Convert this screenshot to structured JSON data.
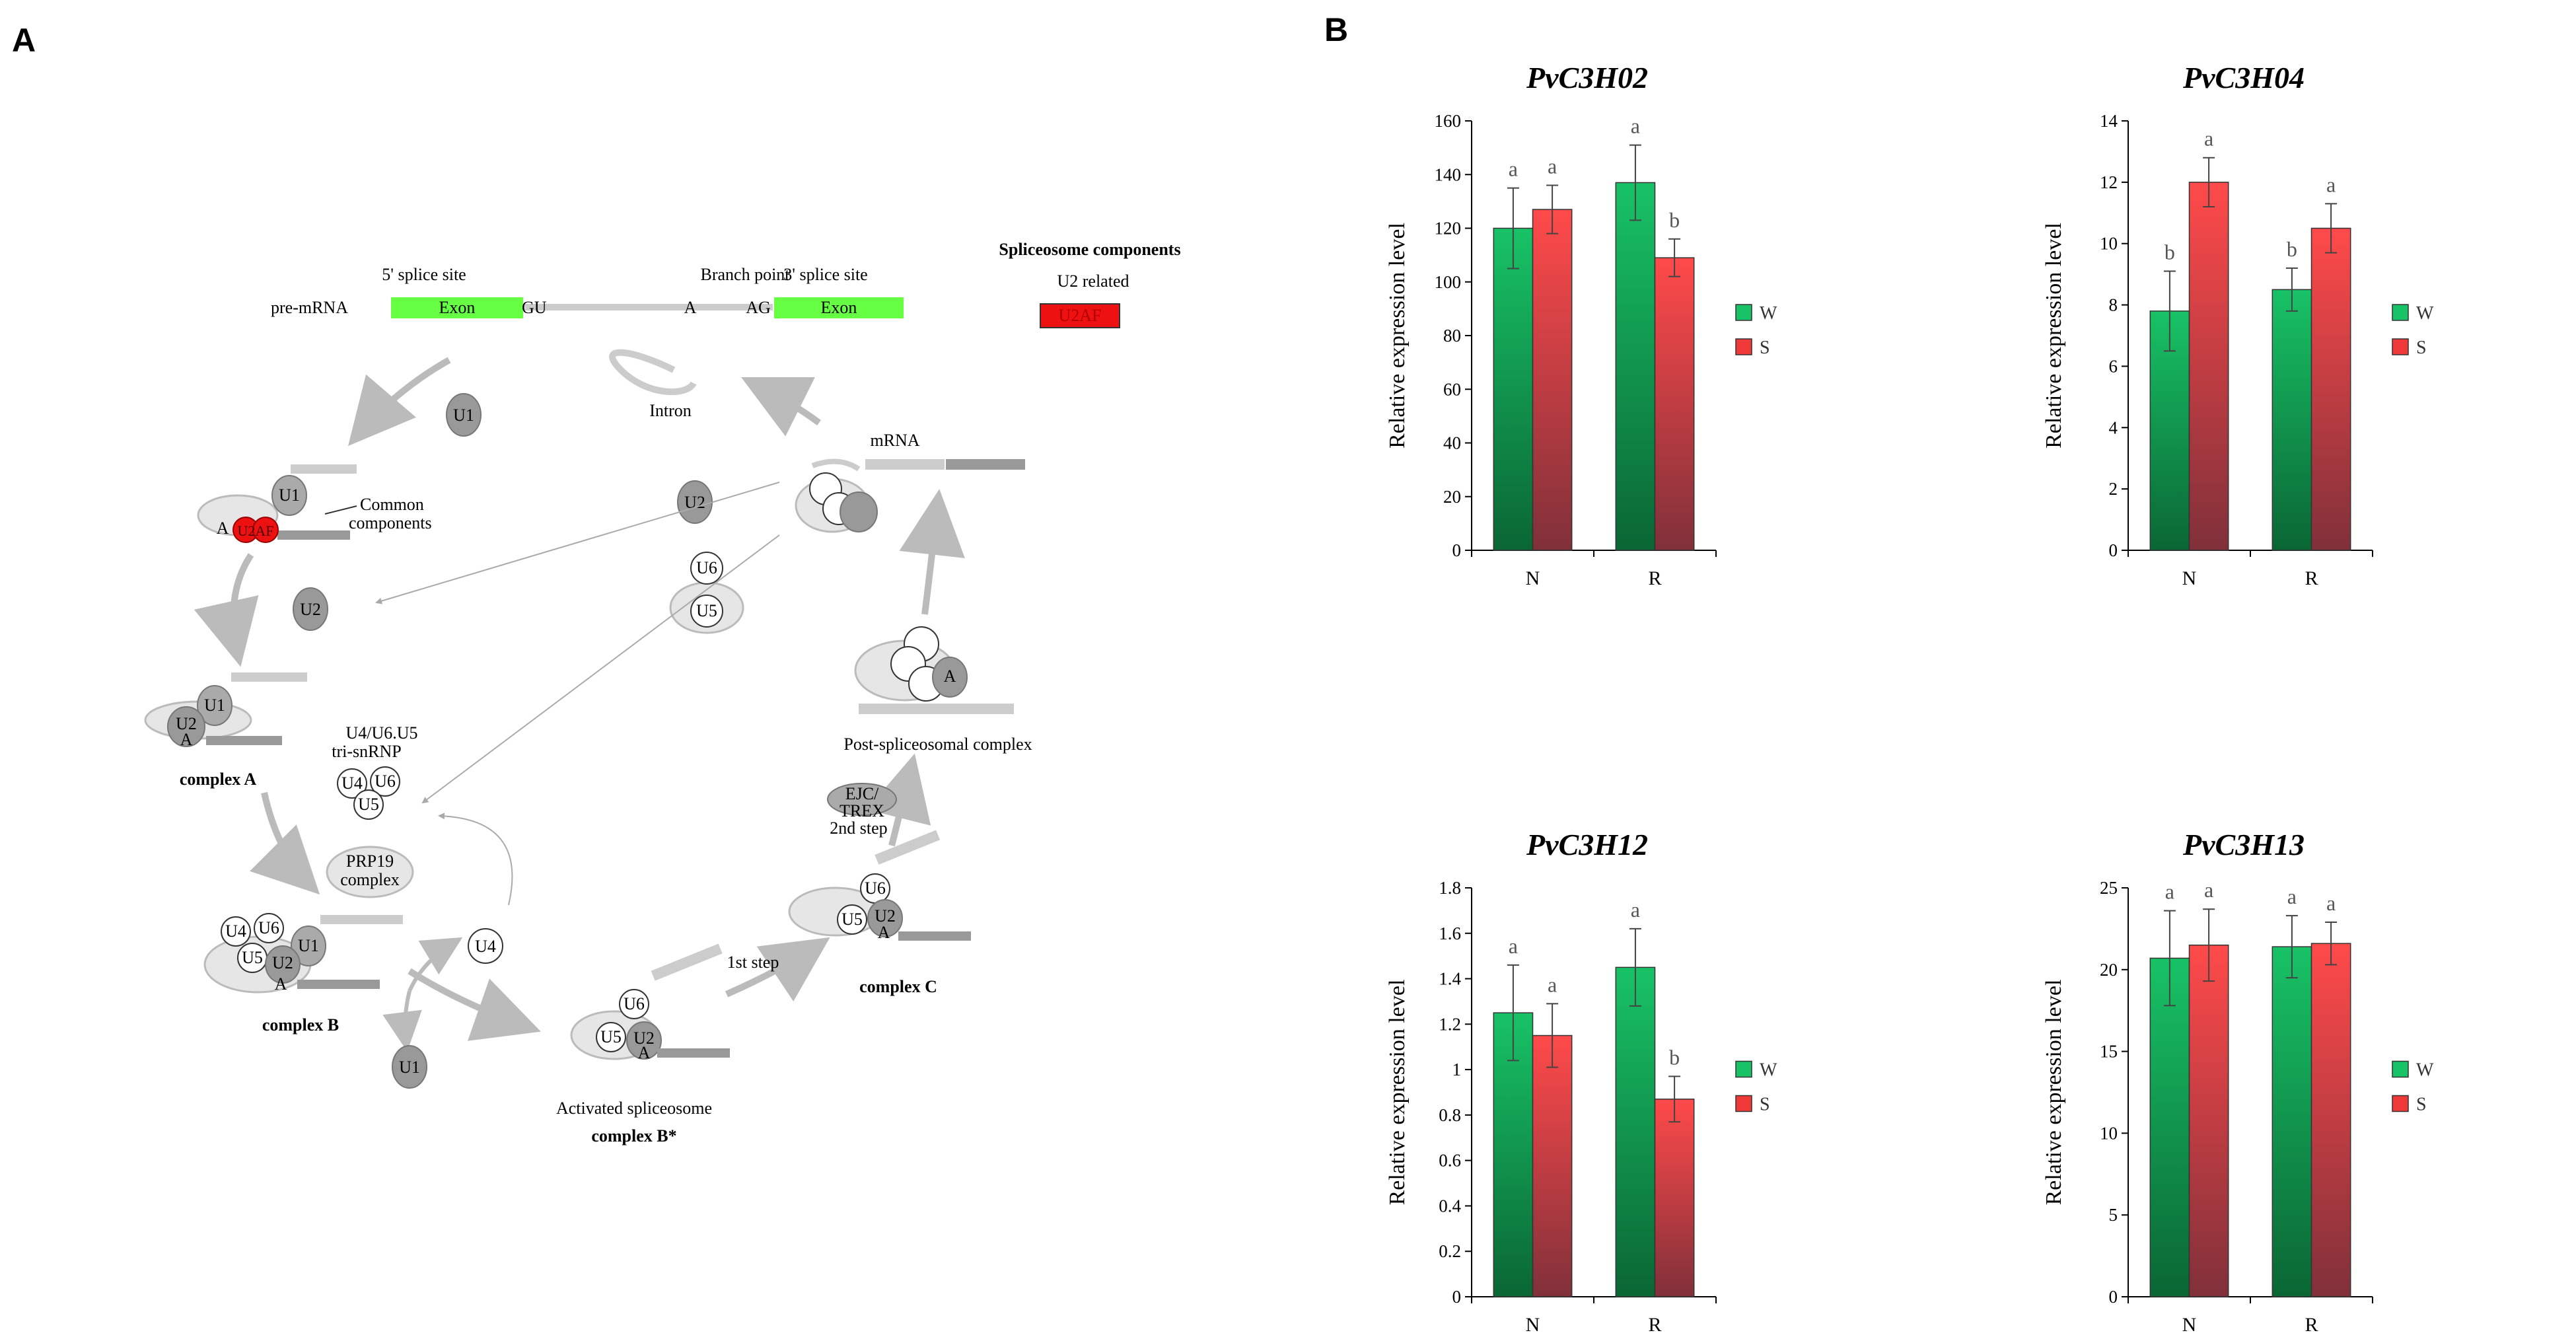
{
  "panels": {
    "a": "A",
    "b": "B"
  },
  "pathway": {
    "pre_mrna": "pre-mRNA",
    "five_splice": "5' splice site",
    "branch_point": "Branch point",
    "three_splice": "3' splice site",
    "exon": "Exon",
    "gu": "GU",
    "a": "A",
    "ag": "AG",
    "intron": "Intron",
    "mrna": "mRNA",
    "common_line1": "Common",
    "common_line2": "components",
    "u2af": "U2AF",
    "legend_title": "Spliceosome components",
    "legend_sub": "U2 related",
    "tri_line1": "U4/U6.U5",
    "tri_line2": "tri-snRNP",
    "prp19_line1": "PRP19",
    "prp19_line2": "complex",
    "ejc_line1": "EJC/",
    "ejc_line2": "TREX",
    "second_step": "2nd step",
    "first_step": "1st step",
    "post": "Post-spliceosomal complex",
    "complex_a": "complex A",
    "complex_b": "complex B",
    "complex_c": "complex C",
    "activated": "Activated spliceosome",
    "complex_bstar": "complex B*",
    "u1": "U1",
    "u2": "U2",
    "u4": "U4",
    "u5": "U5",
    "u6": "U6",
    "colors": {
      "exon": "#66ff44",
      "u2af": "#ee1111",
      "gray": "#999999",
      "light": "#d9d9d9"
    }
  },
  "chart_common": {
    "ylabel": "Relative expression level",
    "legend": [
      "W",
      "S"
    ],
    "series_colors": {
      "W": [
        "#18c266",
        "#0a6634"
      ],
      "S": [
        "#ff4a4a",
        "#80303a"
      ]
    }
  },
  "chart_data": [
    {
      "type": "bar",
      "title": "PvC3H02",
      "categories": [
        "N",
        "R"
      ],
      "series": [
        {
          "name": "W",
          "values": [
            120,
            137
          ],
          "errors": [
            15,
            14
          ],
          "letters": [
            "a",
            "a"
          ]
        },
        {
          "name": "S",
          "values": [
            127,
            109
          ],
          "errors": [
            9,
            7
          ],
          "letters": [
            "a",
            "b"
          ]
        }
      ],
      "ylabel": "Relative expression level",
      "ylim": [
        0,
        160
      ],
      "ticks": [
        "0",
        "20",
        "40",
        "60",
        "80",
        "100",
        "120",
        "140",
        "160"
      ],
      "legend_position": "right"
    },
    {
      "type": "bar",
      "title": "PvC3H04",
      "categories": [
        "N",
        "R"
      ],
      "series": [
        {
          "name": "W",
          "values": [
            7.8,
            8.5
          ],
          "errors": [
            1.3,
            0.7
          ],
          "letters": [
            "b",
            "b"
          ]
        },
        {
          "name": "S",
          "values": [
            12.0,
            10.5
          ],
          "errors": [
            0.8,
            0.8
          ],
          "letters": [
            "a",
            "a"
          ]
        }
      ],
      "ylabel": "Relative expression level",
      "ylim": [
        0,
        14
      ],
      "ticks": [
        "0",
        "2",
        "4",
        "6",
        "8",
        "10",
        "12",
        "14"
      ],
      "legend_position": "right"
    },
    {
      "type": "bar",
      "title": "PvC3H12",
      "categories": [
        "N",
        "R"
      ],
      "series": [
        {
          "name": "W",
          "values": [
            1.25,
            1.45
          ],
          "errors": [
            0.21,
            0.17
          ],
          "letters": [
            "a",
            "a"
          ]
        },
        {
          "name": "S",
          "values": [
            1.15,
            0.87
          ],
          "errors": [
            0.14,
            0.1
          ],
          "letters": [
            "a",
            "b"
          ]
        }
      ],
      "ylabel": "Relative expression level",
      "ylim": [
        0,
        1.8
      ],
      "ticks": [
        "0",
        "0.2",
        "0.4",
        "0.6",
        "0.8",
        "1",
        "1.2",
        "1.4",
        "1.6",
        "1.8"
      ],
      "legend_position": "right"
    },
    {
      "type": "bar",
      "title": "PvC3H13",
      "categories": [
        "N",
        "R"
      ],
      "series": [
        {
          "name": "W",
          "values": [
            20.7,
            21.4
          ],
          "errors": [
            2.9,
            1.9
          ],
          "letters": [
            "a",
            "a"
          ]
        },
        {
          "name": "S",
          "values": [
            21.5,
            21.6
          ],
          "errors": [
            2.2,
            1.3
          ],
          "letters": [
            "a",
            "a"
          ]
        }
      ],
      "ylabel": "Relative expression level",
      "ylim": [
        0,
        25
      ],
      "ticks": [
        "0",
        "5",
        "10",
        "15",
        "20",
        "25"
      ],
      "legend_position": "right"
    }
  ]
}
